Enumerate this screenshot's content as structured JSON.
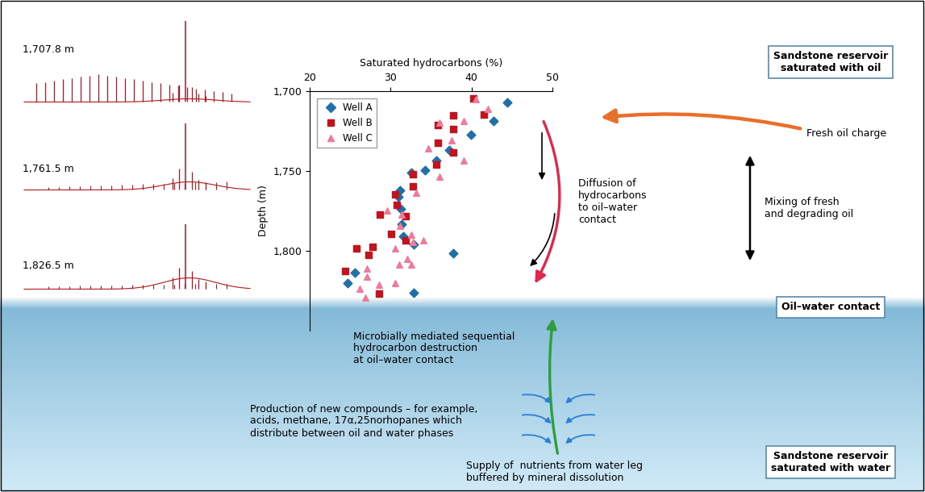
{
  "chromatogram_labels": [
    "1,707.8 m",
    "1,761.5 m",
    "1,826.5 m"
  ],
  "chart_data": {
    "type": "scatter",
    "xlabel": "Saturated hydrocarbons (%)",
    "ylabel": "Depth (m)",
    "xlim": [
      20,
      50
    ],
    "xticks": [
      20,
      30,
      40,
      50
    ],
    "ylim": [
      1850,
      1700
    ],
    "yticks": [
      {
        "value": 1700,
        "label": "1,700"
      },
      {
        "value": 1750,
        "label": "1,750"
      },
      {
        "value": 1800,
        "label": "1,800"
      }
    ],
    "legend": "upper left",
    "series": [
      {
        "name": "Well A",
        "color": "#1f6fa8",
        "marker": "diamond",
        "x": [
          44.4,
          42.7,
          39.9,
          37.2,
          35.6,
          34.3,
          32.6,
          31.2,
          31.0,
          31.3,
          31.4,
          31.6,
          32.9,
          37.7,
          25.6,
          24.7,
          32.9
        ],
        "y": [
          1707,
          1718.5,
          1727.5,
          1737,
          1743.5,
          1749.5,
          1751,
          1762,
          1766,
          1773.5,
          1783.5,
          1791,
          1796,
          1801.5,
          1813.5,
          1820,
          1826.5
        ]
      },
      {
        "name": "Well B",
        "color": "#c0141e",
        "marker": "square",
        "x": [
          40.2,
          41.5,
          37.7,
          35.8,
          37.7,
          35.8,
          37.7,
          35.6,
          32.8,
          32.8,
          30.6,
          30.8,
          28.7,
          31.9,
          30.1,
          31.9,
          27.8,
          25.8,
          27.3,
          24.4,
          28.6
        ],
        "y": [
          1704.5,
          1714.5,
          1715,
          1721,
          1723.5,
          1732.5,
          1738.5,
          1746,
          1752,
          1759.5,
          1764.5,
          1771,
          1777.5,
          1778.5,
          1789.5,
          1793.5,
          1797.5,
          1798.5,
          1802.5,
          1812.5,
          1827
        ]
      },
      {
        "name": "Well C",
        "color": "#f07a9a",
        "marker": "triangle",
        "x": [
          40.5,
          42.0,
          39.0,
          36.0,
          37.5,
          34.7,
          39.0,
          36.0,
          33.2,
          29.6,
          31.4,
          31.2,
          32.6,
          32.8,
          34.1,
          30.6,
          32.1,
          32.6,
          31.1,
          27.1,
          27.1,
          30.6,
          26.2,
          28.6,
          26.9
        ],
        "y": [
          1705,
          1711,
          1718.5,
          1719.5,
          1731,
          1736,
          1743.5,
          1753.5,
          1763.5,
          1774.5,
          1777.5,
          1784.5,
          1790,
          1794.5,
          1793.5,
          1798.5,
          1805,
          1808.5,
          1808.5,
          1811,
          1816,
          1820,
          1823.5,
          1821,
          1829.5
        ]
      }
    ]
  },
  "boxes": {
    "oil_reservoir": "Sandstone reservoir\nsaturated with oil",
    "contact": "Oil–water contact",
    "water_reservoir": "Sandstone reservoir\nsaturated with water"
  },
  "annotations": {
    "fresh_charge": "Fresh oil charge",
    "mixing": "Mixing of fresh\nand degrading oil",
    "diffusion": "Diffusion of\nhydrocarbons\nto oil–water\ncontact",
    "destruction": "Microbially mediated sequential\nhydrocarbon destruction\nat oil–water contact",
    "production": "Production of new compounds – for example,\nacids, methane, 17α,25norhopanes which\ndistribute between oil and water phases",
    "nutrients": "Supply of  nutrients from water leg\nbuffered by mineral dissolution"
  }
}
